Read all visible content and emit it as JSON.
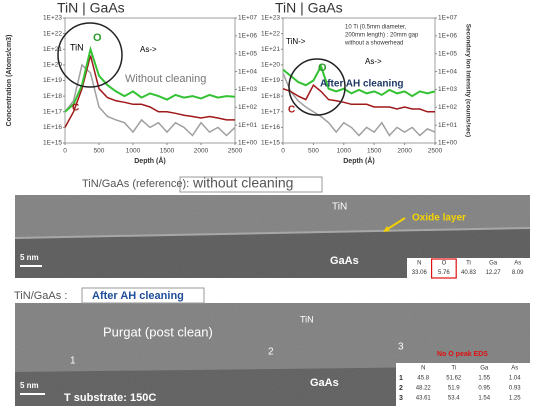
{
  "plots": [
    {
      "title": "TiN | GaAs",
      "y_label": "Concentration (Atoms/cm3)",
      "x_label": "Depth (Å)",
      "x": [
        0,
        125,
        250,
        375,
        500,
        625,
        750,
        875,
        1000,
        1125,
        1250,
        1375,
        1500,
        1625,
        1750,
        1875,
        2000,
        2125,
        2250,
        2375,
        2500
      ],
      "xlim": [
        0,
        2500
      ],
      "xticks": [
        0,
        500,
        1000,
        1500,
        2000,
        2500
      ],
      "ylim": [
        1000000000000000.0,
        1e+23
      ],
      "yticks": [
        {
          "value": 1000000000000000.0,
          "label": "1E+15"
        },
        {
          "value": 1e+16,
          "label": "1E+16"
        },
        {
          "value": 1e+17,
          "label": "1E+17"
        },
        {
          "value": 1e+18,
          "label": "1E+18"
        },
        {
          "value": 1e+19,
          "label": "1E+19"
        },
        {
          "value": 1e+20,
          "label": "1E+20"
        },
        {
          "value": 1e+21,
          "label": "1E+21"
        },
        {
          "value": 1e+22,
          "label": "1E+22"
        },
        {
          "value": 1e+23,
          "label": "1E+23"
        }
      ],
      "y2lim": [
        1,
        10000000.0
      ],
      "y2ticks": [
        {
          "value": 1,
          "label": "1E+00"
        },
        {
          "value": 10,
          "label": "1E+01"
        },
        {
          "value": 100,
          "label": "1E+02"
        },
        {
          "value": 1000,
          "label": "1E+03"
        },
        {
          "value": 10000,
          "label": "1E+04"
        },
        {
          "value": 100000,
          "label": "1E+05"
        },
        {
          "value": 1000000,
          "label": "1E+06"
        },
        {
          "value": 10000000,
          "label": "1E+07"
        }
      ],
      "log_scale": true,
      "series": [
        {
          "color": "#a0a0a0",
          "values": [
            1e+17,
            5e+17,
            1e+20,
            3e+19,
            2e+17,
            5e+16,
            3e+16,
            2e+16,
            5000000000000000.0,
            3e+16,
            1e+16,
            2e+16,
            5000000000000000.0,
            2e+16,
            1e+16,
            3000000000000000.0,
            2e+16,
            5000000000000000.0,
            1e+16,
            3000000000000000.0,
            1e+16
          ]
        },
        {
          "color": "#a01818",
          "values": [
            1e+16,
            1e+17,
            3e+18,
            4e+20,
            3e+18,
            8e+17,
            5e+17,
            4e+17,
            3e+17,
            3e+17,
            2e+17,
            1e+17,
            1e+17,
            8e+16,
            6e+16,
            5e+16,
            4e+16,
            5e+16,
            4e+16,
            3e+16,
            3e+16
          ]
        },
        {
          "color": "#33c233",
          "values": [
            1e+17,
            3e+17,
            5e+18,
            1e+21,
            2e+19,
            5e+18,
            2e+18,
            1e+18,
            2e+18,
            8e+17,
            1.5e+18,
            1e+18,
            6e+17,
            1.2e+18,
            8e+17,
            1e+18,
            7e+17,
            1.2e+18,
            8e+17,
            1e+18,
            9e+17
          ]
        }
      ],
      "annotations": [
        "TiN",
        "O",
        "As->",
        "C",
        "Without cleaning"
      ]
    },
    {
      "title": "TiN | GaAs",
      "y2_label": "Secondary Ion Intensity (counts/sec)",
      "x_label": "Depth (Å)",
      "x": [
        0,
        125,
        250,
        375,
        500,
        625,
        750,
        875,
        1000,
        1125,
        1250,
        1375,
        1500,
        1625,
        1750,
        1875,
        2000,
        2125,
        2250,
        2375,
        2500
      ],
      "xlim": [
        0,
        2500
      ],
      "xticks": [
        0,
        500,
        1000,
        1500,
        2000,
        2500
      ],
      "ylim": [
        1000000000000000.0,
        1e+23
      ],
      "yticks": [
        {
          "value": 1000000000000000.0,
          "label": "1E+15"
        },
        {
          "value": 1e+16,
          "label": "1E+16"
        },
        {
          "value": 1e+17,
          "label": "1E+17"
        },
        {
          "value": 1e+18,
          "label": "1E+18"
        },
        {
          "value": 1e+19,
          "label": "1E+19"
        },
        {
          "value": 1e+20,
          "label": "1E+20"
        },
        {
          "value": 1e+21,
          "label": "1E+21"
        },
        {
          "value": 1e+22,
          "label": "1E+22"
        },
        {
          "value": 1e+23,
          "label": "1E+23"
        }
      ],
      "y2lim": [
        1,
        10000000.0
      ],
      "y2ticks": [
        {
          "value": 1,
          "label": "1E+00"
        },
        {
          "value": 10,
          "label": "1E+01"
        },
        {
          "value": 100,
          "label": "1E+02"
        },
        {
          "value": 1000,
          "label": "1E+03"
        },
        {
          "value": 10000,
          "label": "1E+04"
        },
        {
          "value": 100000,
          "label": "1E+05"
        },
        {
          "value": 1000000,
          "label": "1E+06"
        },
        {
          "value": 10000000,
          "label": "1E+07"
        }
      ],
      "log_scale": true,
      "series": [
        {
          "color": "#a0a0a0",
          "values": [
            3e+19,
            2e+18,
            5e+17,
            2e+17,
            1e+17,
            5e+16,
            2e+16,
            5000000000000000.0,
            2e+16,
            1e+16,
            3000000000000000.0,
            1e+16,
            5000000000000000.0,
            2e+16,
            3000000000000000.0,
            1e+16,
            5000000000000000.0,
            1e+16,
            3000000000000000.0,
            8000000000000000.0,
            5000000000000000.0
          ]
        },
        {
          "color": "#a01818",
          "values": [
            3e+18,
            2e+18,
            1e+18,
            6e+17,
            5e+18,
            2e+18,
            6e+17,
            5e+17,
            4e+17,
            3e+17,
            3e+17,
            3e+17,
            2e+17,
            2e+17,
            2e+17,
            1.5e+17,
            2e+17,
            1.5e+17,
            1.5e+17,
            1e+17,
            1e+17
          ]
        },
        {
          "color": "#33c233",
          "values": [
            5e+19,
            2e+19,
            8e+18,
            5e+18,
            1e+19,
            8e+19,
            3e+18,
            2e+18,
            3e+18,
            1.5e+18,
            2.5e+18,
            1.5e+18,
            2e+18,
            1.2e+18,
            2.5e+18,
            1.5e+18,
            2e+18,
            1e+18,
            2e+18,
            1.5e+18,
            2e+18
          ]
        }
      ],
      "annotations": [
        "TiN->",
        "O",
        "As->",
        "C",
        "After AH cleaning",
        "10 Ti (0.5mm diameter,",
        "200mm length) : 20mm gap",
        "without a showerhead"
      ]
    }
  ],
  "panels": [
    {
      "heading": "TiN/GaAs (reference):",
      "condition": "without cleaning",
      "labels": [
        "TiN",
        "Oxide layer",
        "GaAs"
      ],
      "scale_bar": "5 nm",
      "table": {
        "header": [
          "N",
          "O",
          "Ti",
          "Ga",
          "As"
        ],
        "rows": [
          [
            33.06,
            5.76,
            40.83,
            12.27,
            8.09
          ]
        ]
      }
    },
    {
      "heading": "TiN/GaAs :",
      "condition": "After AH cleaning",
      "labels": [
        "Purgat (post clean)",
        "TiN",
        "1",
        "2",
        "3",
        "GaAs",
        "T substrate: 150C",
        "No O peak EDS"
      ],
      "scale_bar": "5 nm",
      "table": {
        "header": [
          "N",
          "Ti",
          "Ga",
          "As"
        ],
        "rows": [
          [
            1,
            45.8,
            51.62,
            1.55,
            1.04
          ],
          [
            2,
            48.22,
            51.9,
            0.95,
            0.93
          ],
          [
            3,
            43.61,
            53.4,
            1.54,
            1.25
          ]
        ]
      }
    }
  ]
}
